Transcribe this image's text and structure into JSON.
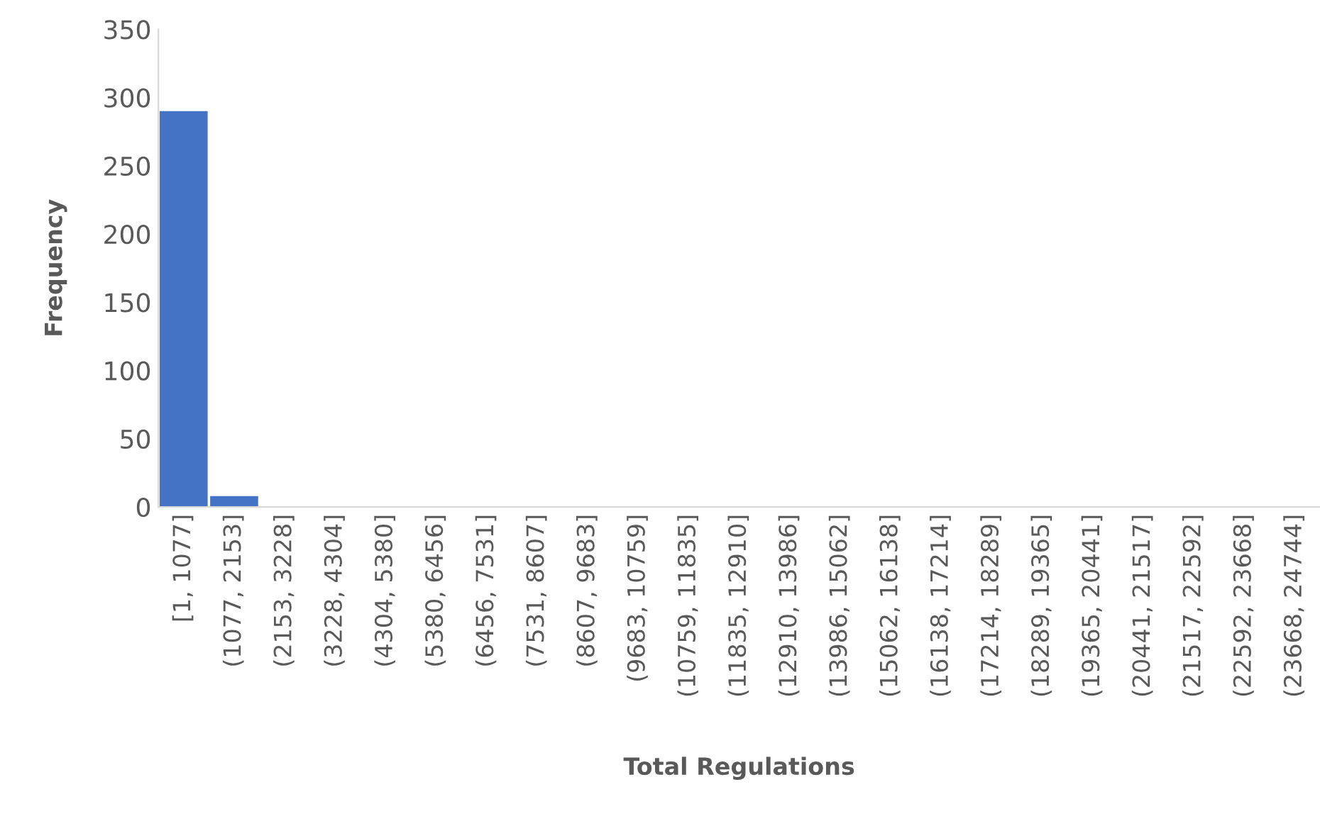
{
  "chart_data": {
    "type": "bar",
    "xlabel": "Total Regulations",
    "ylabel": "Frequency",
    "categories": [
      "[1, 1077]",
      "(1077, 2153]",
      "(2153, 3228]",
      "(3228, 4304]",
      "(4304, 5380]",
      "(5380, 6456]",
      "(6456, 7531]",
      "(7531, 8607]",
      "(8607, 9683]",
      "(9683, 10759]",
      "(10759, 11835]",
      "(11835, 12910]",
      "(12910, 13986]",
      "(13986, 15062]",
      "(15062, 16138]",
      "(16138, 17214]",
      "(17214, 18289]",
      "(18289, 19365]",
      "(19365, 20441]",
      "(20441, 21517]",
      "(21517, 22592]",
      "(22592, 23668]",
      "(23668, 24744]"
    ],
    "values": [
      290,
      8,
      0,
      0,
      0,
      0,
      0,
      0,
      0,
      0,
      0,
      0,
      0,
      0,
      0,
      0,
      0,
      0,
      0,
      0,
      0,
      0,
      0
    ],
    "color": "#4472c4",
    "ylim": [
      0,
      350
    ],
    "yticks": [
      0,
      50,
      100,
      150,
      200,
      250,
      300,
      350
    ],
    "grid": false,
    "legend": false
  }
}
